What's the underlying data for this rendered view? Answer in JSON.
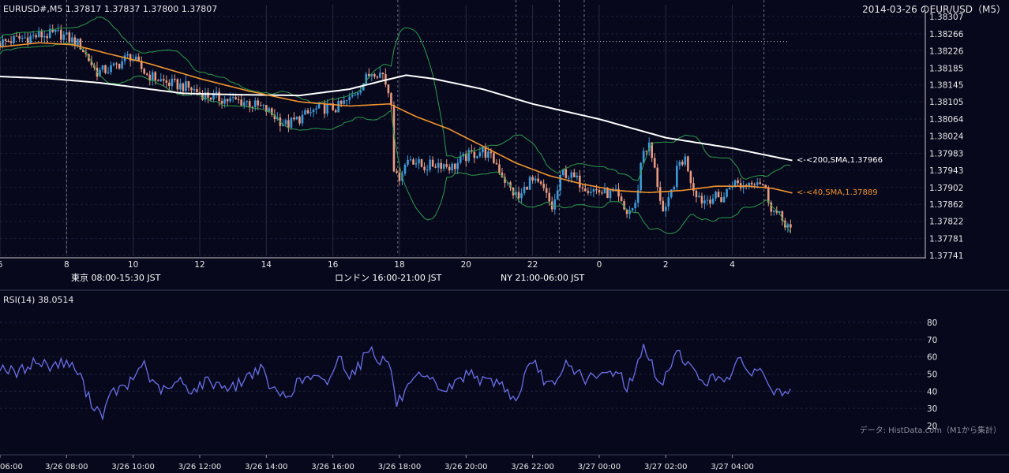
{
  "header": {
    "symbol_info": "EURUSD#,M5 1.37817 1.37837 1.37800 1.37807",
    "title": "2014-03-26 のEUR/USD（M5）"
  },
  "footer": {
    "source": "データ: HistData.com（M1から集計）"
  },
  "colors": {
    "background": "#07081c",
    "bull": "#3d9ad8",
    "bear": "#e89a80",
    "sma40": "#f0952e",
    "sma200": "#ffffff",
    "bollinger": "#2e9a4c",
    "rsi": "#6b6fe8",
    "grid": "#2a2d45",
    "tokyo": "#204c7a",
    "london": "#7a4d12",
    "ny": "#246339"
  },
  "sessions": [
    {
      "label": "東京 08:00-15:30 JST",
      "start_hour": 8.0,
      "end_hour": 15.5,
      "color": "#204c7a"
    },
    {
      "label": "ロンドン 16:00-21:00 JST",
      "start_hour": 16.0,
      "end_hour": 21.0,
      "color": "#7a4d12"
    },
    {
      "label": "NY 21:00-06:00 JST",
      "start_hour": 21.0,
      "end_hour": 30.0,
      "color": "#246339"
    }
  ],
  "chart_data": [
    {
      "type": "candlestick",
      "title": "2014-03-26 のEUR/USD（M5）",
      "x_unit": "hour (JST, hours past 3/26 00:00)",
      "xlim": [
        6,
        29.8
      ],
      "ylim": [
        1.37741,
        1.38307
      ],
      "y_scale_labels": [
        "1.38307",
        "1.38266",
        "1.38226",
        "1.38185",
        "1.38145",
        "1.38105",
        "1.38064",
        "1.38024",
        "1.37983",
        "1.37943",
        "1.37902",
        "1.37862",
        "1.37822",
        "1.37781",
        "1.37741"
      ],
      "x_tick_labels": [
        {
          "hour": 6,
          "label": "6"
        },
        {
          "hour": 8,
          "label": "8"
        },
        {
          "hour": 10,
          "label": "10"
        },
        {
          "hour": 12,
          "label": "12"
        },
        {
          "hour": 14,
          "label": "14"
        },
        {
          "hour": 16,
          "label": "16"
        },
        {
          "hour": 18,
          "label": "18"
        },
        {
          "hour": 20,
          "label": "20"
        },
        {
          "hour": 22,
          "label": "22"
        },
        {
          "hour": 24,
          "label": "0"
        },
        {
          "hour": 26,
          "label": "2"
        },
        {
          "hour": 28,
          "label": "4"
        }
      ],
      "bottom_axis_labels": [
        {
          "hour": 6,
          "label": "06:00"
        },
        {
          "hour": 8,
          "label": "3/26 08:00"
        },
        {
          "hour": 10,
          "label": "3/26 10:00"
        },
        {
          "hour": 12,
          "label": "3/26 12:00"
        },
        {
          "hour": 14,
          "label": "3/26 14:00"
        },
        {
          "hour": 16,
          "label": "3/26 16:00"
        },
        {
          "hour": 18,
          "label": "3/26 18:00"
        },
        {
          "hour": 20,
          "label": "3/26 20:00"
        },
        {
          "hour": 22,
          "label": "3/26 22:00"
        },
        {
          "hour": 24,
          "label": "3/27 00:00"
        },
        {
          "hour": 26,
          "label": "3/27 02:00"
        },
        {
          "hour": 28,
          "label": "3/27 04:00"
        }
      ],
      "dashed_vlines_hours": [
        8,
        17.95,
        21.5,
        22.8,
        23.55,
        28.95
      ],
      "horizontal_dotted_level": 1.38248,
      "price_keyframes": [
        [
          6.0,
          1.38245
        ],
        [
          6.6,
          1.38255
        ],
        [
          7.2,
          1.38262
        ],
        [
          7.8,
          1.38266
        ],
        [
          8.4,
          1.3824
        ],
        [
          8.9,
          1.38175
        ],
        [
          9.4,
          1.38185
        ],
        [
          9.9,
          1.38215
        ],
        [
          10.4,
          1.3817
        ],
        [
          11.0,
          1.3815
        ],
        [
          11.6,
          1.3814
        ],
        [
          12.2,
          1.3812
        ],
        [
          12.8,
          1.3811
        ],
        [
          13.4,
          1.38105
        ],
        [
          14.0,
          1.38085
        ],
        [
          14.6,
          1.3805
        ],
        [
          15.1,
          1.3807
        ],
        [
          15.6,
          1.3809
        ],
        [
          16.1,
          1.3809
        ],
        [
          16.5,
          1.3811
        ],
        [
          16.9,
          1.3815
        ],
        [
          17.2,
          1.3818
        ],
        [
          17.5,
          1.3817
        ],
        [
          17.75,
          1.3811
        ],
        [
          17.85,
          1.3792
        ],
        [
          18.0,
          1.3793
        ],
        [
          18.3,
          1.37975
        ],
        [
          18.7,
          1.3795
        ],
        [
          19.2,
          1.3796
        ],
        [
          19.6,
          1.3795
        ],
        [
          20.0,
          1.37975
        ],
        [
          20.5,
          1.3799
        ],
        [
          20.9,
          1.3796
        ],
        [
          21.3,
          1.379
        ],
        [
          21.6,
          1.37875
        ],
        [
          21.9,
          1.3792
        ],
        [
          22.3,
          1.379
        ],
        [
          22.6,
          1.3785
        ],
        [
          22.9,
          1.3794
        ],
        [
          23.3,
          1.3792
        ],
        [
          23.7,
          1.379
        ],
        [
          24.1,
          1.3789
        ],
        [
          24.5,
          1.37885
        ],
        [
          24.8,
          1.3784
        ],
        [
          25.1,
          1.3786
        ],
        [
          25.3,
          1.3799
        ],
        [
          25.5,
          1.38
        ],
        [
          25.7,
          1.3793
        ],
        [
          25.95,
          1.3783
        ],
        [
          26.2,
          1.379
        ],
        [
          26.4,
          1.3796
        ],
        [
          26.6,
          1.3797
        ],
        [
          26.8,
          1.37905
        ],
        [
          27.1,
          1.3787
        ],
        [
          27.4,
          1.3788
        ],
        [
          27.7,
          1.37875
        ],
        [
          28.0,
          1.37915
        ],
        [
          28.3,
          1.37905
        ],
        [
          28.6,
          1.3792
        ],
        [
          28.8,
          1.3792
        ],
        [
          28.95,
          1.37905
        ],
        [
          29.2,
          1.3785
        ],
        [
          29.5,
          1.37825
        ],
        [
          29.75,
          1.37807
        ]
      ],
      "sma200_keyframes": [
        [
          6.0,
          1.38165
        ],
        [
          7.5,
          1.3816
        ],
        [
          9.0,
          1.3815
        ],
        [
          10.5,
          1.38135
        ],
        [
          11.5,
          1.38125
        ],
        [
          13.0,
          1.38122
        ],
        [
          15.0,
          1.3812
        ],
        [
          16.5,
          1.38135
        ],
        [
          17.5,
          1.38155
        ],
        [
          18.2,
          1.38168
        ],
        [
          19.0,
          1.3816
        ],
        [
          20.5,
          1.38135
        ],
        [
          22.0,
          1.381
        ],
        [
          24.0,
          1.38064
        ],
        [
          26.0,
          1.3802
        ],
        [
          28.0,
          1.37995
        ],
        [
          29.8,
          1.37966
        ]
      ],
      "sma40_keyframes": [
        [
          6.0,
          1.38235
        ],
        [
          7.2,
          1.38245
        ],
        [
          8.2,
          1.3824
        ],
        [
          9.2,
          1.3822
        ],
        [
          10.5,
          1.38195
        ],
        [
          12.0,
          1.3816
        ],
        [
          13.5,
          1.3813
        ],
        [
          15.0,
          1.38105
        ],
        [
          16.5,
          1.38095
        ],
        [
          17.7,
          1.381
        ],
        [
          18.5,
          1.3807
        ],
        [
          19.5,
          1.3804
        ],
        [
          20.5,
          1.38
        ],
        [
          21.5,
          1.3796
        ],
        [
          22.5,
          1.3793
        ],
        [
          23.5,
          1.3791
        ],
        [
          24.5,
          1.37895
        ],
        [
          25.5,
          1.3789
        ],
        [
          26.5,
          1.37895
        ],
        [
          27.5,
          1.37905
        ],
        [
          28.5,
          1.37905
        ],
        [
          29.2,
          1.379
        ],
        [
          29.8,
          1.37889
        ]
      ],
      "series_labels": [
        "<-<200,SMA,1.37966",
        "<-<40,SMA,1.37889"
      ]
    },
    {
      "type": "line",
      "title": "RSI(14) 38.0514",
      "ylim": [
        20,
        85
      ],
      "y_ticks": [
        20,
        30,
        40,
        50,
        60,
        70,
        80
      ],
      "rsi_keyframes": [
        [
          6.0,
          55
        ],
        [
          6.5,
          50
        ],
        [
          7.0,
          57
        ],
        [
          7.5,
          55
        ],
        [
          8.0,
          57
        ],
        [
          8.4,
          50
        ],
        [
          8.6,
          38
        ],
        [
          8.9,
          30
        ],
        [
          9.1,
          27
        ],
        [
          9.4,
          40
        ],
        [
          9.8,
          42
        ],
        [
          10.1,
          50
        ],
        [
          10.3,
          58
        ],
        [
          10.6,
          43
        ],
        [
          11.0,
          40
        ],
        [
          11.4,
          46
        ],
        [
          11.8,
          40
        ],
        [
          12.2,
          46
        ],
        [
          12.6,
          44
        ],
        [
          13.0,
          42
        ],
        [
          13.4,
          48
        ],
        [
          13.8,
          54
        ],
        [
          14.2,
          40
        ],
        [
          14.6,
          37
        ],
        [
          15.0,
          46
        ],
        [
          15.4,
          48
        ],
        [
          15.8,
          44
        ],
        [
          16.2,
          60
        ],
        [
          16.5,
          50
        ],
        [
          16.8,
          55
        ],
        [
          17.1,
          66
        ],
        [
          17.4,
          58
        ],
        [
          17.7,
          58
        ],
        [
          17.9,
          32
        ],
        [
          18.2,
          40
        ],
        [
          18.6,
          48
        ],
        [
          19.0,
          45
        ],
        [
          19.4,
          40
        ],
        [
          19.8,
          47
        ],
        [
          20.2,
          52
        ],
        [
          20.5,
          45
        ],
        [
          20.9,
          46
        ],
        [
          21.2,
          42
        ],
        [
          21.5,
          33
        ],
        [
          21.8,
          52
        ],
        [
          22.1,
          55
        ],
        [
          22.4,
          45
        ],
        [
          22.7,
          42
        ],
        [
          23.0,
          56
        ],
        [
          23.3,
          52
        ],
        [
          23.6,
          47
        ],
        [
          24.0,
          48
        ],
        [
          24.3,
          51
        ],
        [
          24.6,
          52
        ],
        [
          24.8,
          42
        ],
        [
          25.1,
          50
        ],
        [
          25.3,
          68
        ],
        [
          25.5,
          60
        ],
        [
          25.8,
          42
        ],
        [
          26.0,
          48
        ],
        [
          26.3,
          64
        ],
        [
          26.6,
          58
        ],
        [
          26.9,
          49
        ],
        [
          27.2,
          46
        ],
        [
          27.6,
          48
        ],
        [
          27.9,
          49
        ],
        [
          28.2,
          57
        ],
        [
          28.5,
          52
        ],
        [
          28.8,
          52
        ],
        [
          29.0,
          48
        ],
        [
          29.3,
          38
        ],
        [
          29.5,
          40
        ],
        [
          29.75,
          38
        ]
      ]
    }
  ]
}
